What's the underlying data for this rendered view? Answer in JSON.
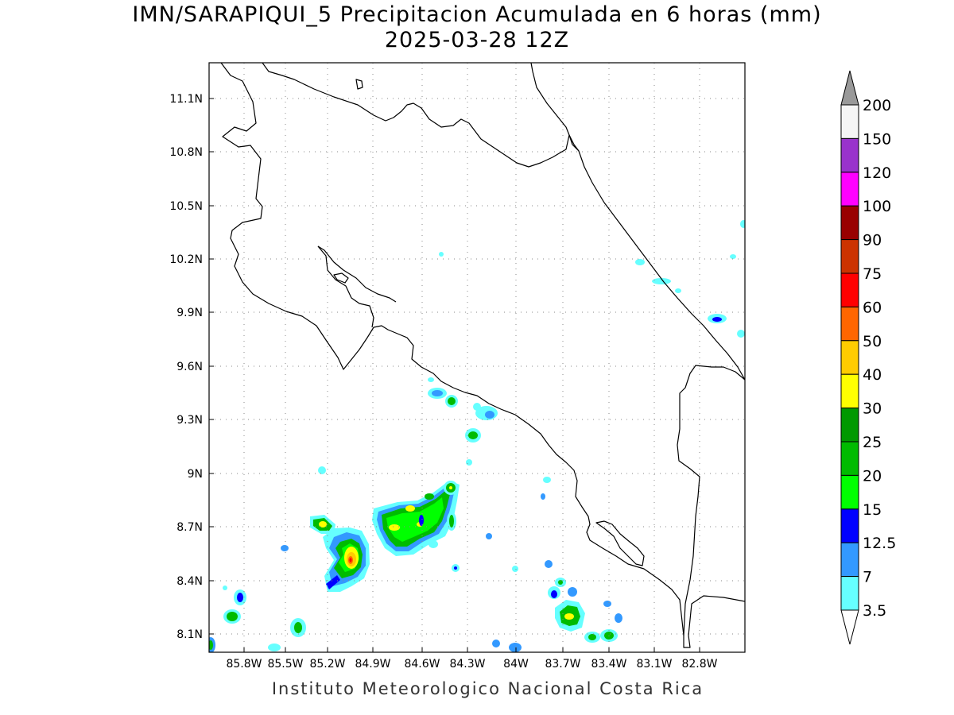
{
  "title": "IMN/SARAPIQUI_5 Precipitacion Acumulada en 6 horas (mm)",
  "subtitle": "2025-03-28 12Z",
  "footer": "Instituto Meteorologico Nacional Costa Rica",
  "map": {
    "lon_labels": [
      "85.8W",
      "85.5W",
      "85.2W",
      "84.9W",
      "84.6W",
      "84.3W",
      "84W",
      "83.7W",
      "83.4W",
      "83.1W",
      "82.8W"
    ],
    "lat_labels": [
      "11.1N",
      "10.8N",
      "10.5N",
      "10.2N",
      "9.9N",
      "9.6N",
      "9.3N",
      "9N",
      "8.7N",
      "8.4N",
      "8.1N"
    ]
  },
  "colorbar": {
    "labels": [
      "200",
      "150",
      "120",
      "100",
      "90",
      "75",
      "60",
      "50",
      "40",
      "30",
      "25",
      "20",
      "15",
      "12.5",
      "7",
      "3.5"
    ],
    "colors": [
      "#f5f5f5",
      "#9933cc",
      "#ff00ff",
      "#990000",
      "#cc3300",
      "#ff0000",
      "#ff6600",
      "#ffcc00",
      "#ffff00",
      "#009900",
      "#00bb00",
      "#00ff00",
      "#0000ff",
      "#3399ff",
      "#66ffff"
    ],
    "over_color": "#999999",
    "under_color": "#ffffff"
  }
}
